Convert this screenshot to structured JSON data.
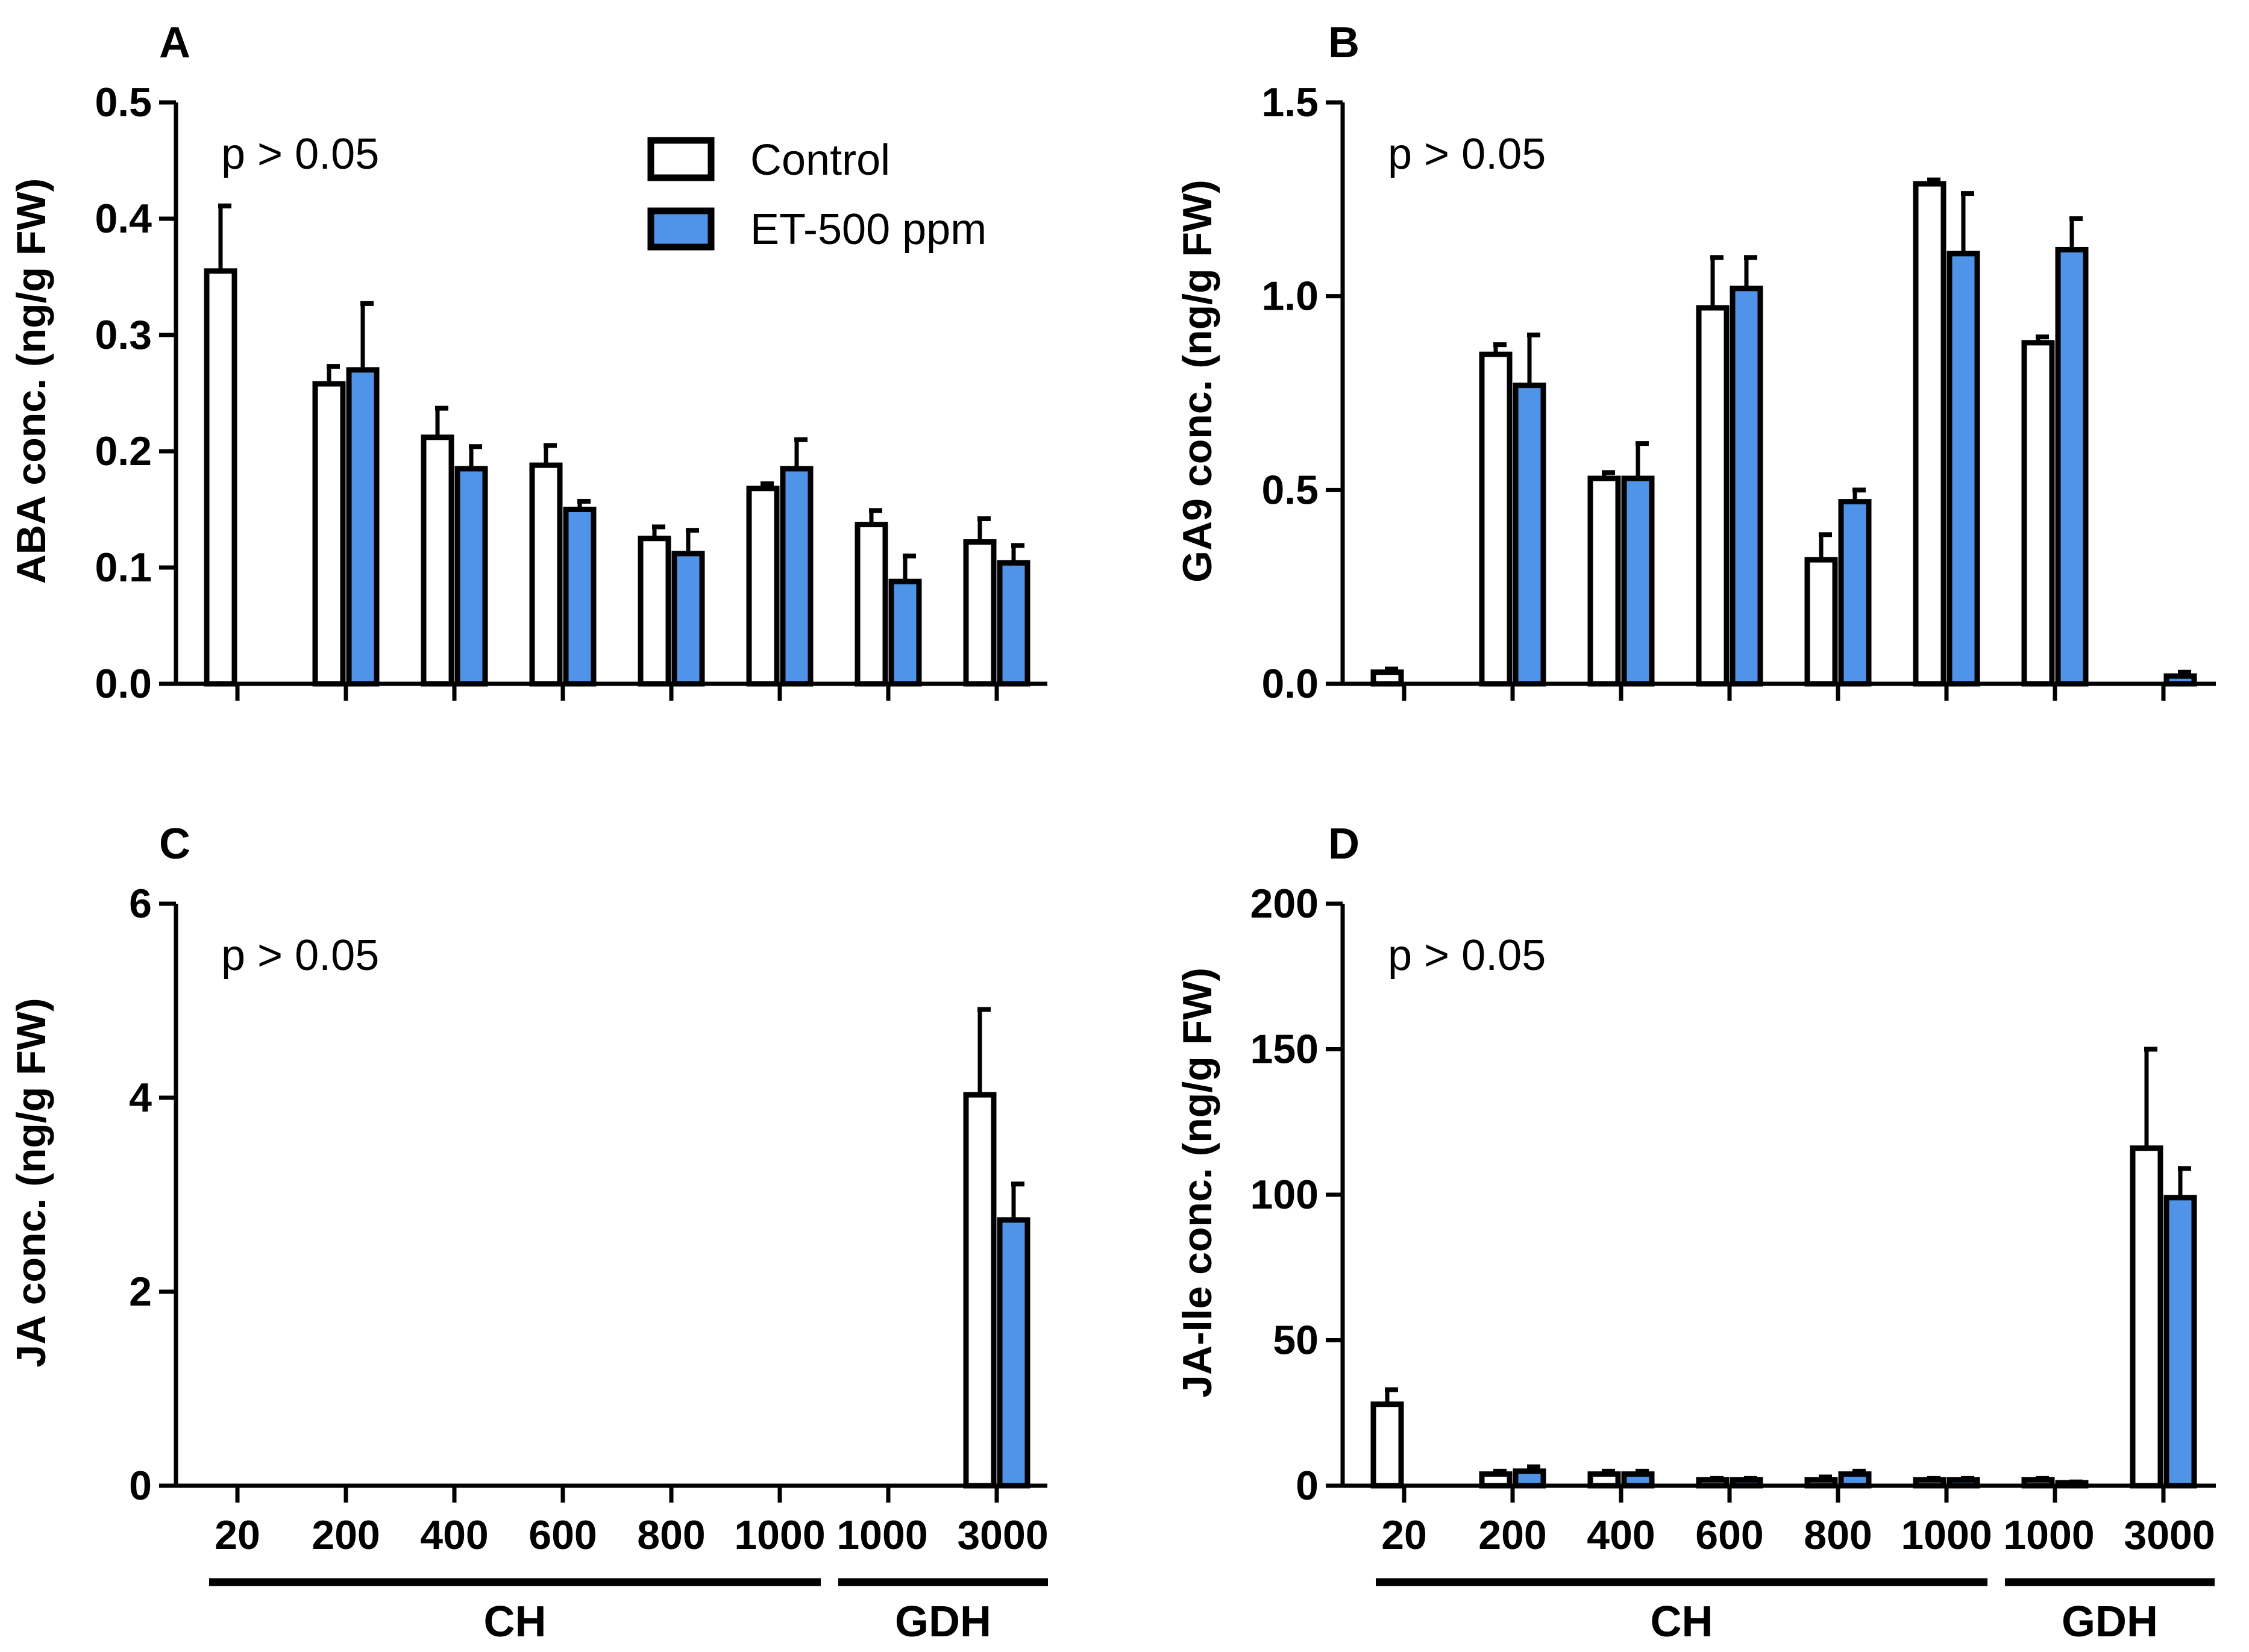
{
  "colors": {
    "control": "#ffffff",
    "treatment": "#4f94e8",
    "stroke": "#000000"
  },
  "legend": {
    "control_label": "Control",
    "treatment_label": "ET-500 ppm",
    "placement": "top-center"
  },
  "chart_data": [
    {
      "type": "bar",
      "panel": "A",
      "title": "",
      "ylabel": "ABA conc. (ng/g FW)",
      "xlabel": "",
      "annotation": "p > 0.05",
      "ylim": [
        0,
        0.5
      ],
      "yticks": [
        "0.0",
        "0.1",
        "0.2",
        "0.3",
        "0.4",
        "0.5"
      ],
      "categories": [
        "20",
        "200",
        "400",
        "600",
        "800",
        "1000",
        "1000",
        "3000"
      ],
      "series": [
        {
          "name": "Control",
          "values": [
            0.355,
            0.258,
            0.212,
            0.188,
            0.125,
            0.168,
            0.137,
            0.122
          ],
          "errors": [
            0.056,
            0.015,
            0.025,
            0.017,
            0.01,
            0.004,
            0.012,
            0.02
          ]
        },
        {
          "name": "ET-500 ppm",
          "values": [
            null,
            0.27,
            0.185,
            0.15,
            0.112,
            0.185,
            0.088,
            0.104
          ],
          "errors": [
            null,
            0.057,
            0.019,
            0.007,
            0.02,
            0.025,
            0.022,
            0.015
          ]
        }
      ]
    },
    {
      "type": "bar",
      "panel": "B",
      "title": "",
      "ylabel": "GA9 conc. (ng/g FW)",
      "xlabel": "",
      "annotation": "p > 0.05",
      "ylim": [
        0,
        1.5
      ],
      "yticks": [
        "0.0",
        "0.5",
        "1.0",
        "1.5"
      ],
      "categories": [
        "20",
        "200",
        "400",
        "600",
        "800",
        "1000",
        "1000",
        "3000"
      ],
      "series": [
        {
          "name": "Control",
          "values": [
            0.03,
            0.85,
            0.53,
            0.97,
            0.32,
            1.29,
            0.88,
            null
          ],
          "errors": [
            0.008,
            0.025,
            0.015,
            0.13,
            0.065,
            0.01,
            0.015,
            null
          ]
        },
        {
          "name": "ET-500 ppm",
          "values": [
            null,
            0.77,
            0.53,
            1.02,
            0.47,
            1.11,
            1.12,
            0.02
          ],
          "errors": [
            null,
            0.13,
            0.09,
            0.08,
            0.03,
            0.155,
            0.08,
            0.01
          ]
        }
      ]
    },
    {
      "type": "bar",
      "panel": "C",
      "title": "",
      "ylabel": "JA conc. (ng/g FW)",
      "xlabel": "",
      "annotation": "p > 0.05",
      "ylim": [
        0,
        6
      ],
      "yticks": [
        "0",
        "2",
        "4",
        "6"
      ],
      "categories": [
        "20",
        "200",
        "400",
        "600",
        "800",
        "1000",
        "1000",
        "3000"
      ],
      "series": [
        {
          "name": "Control",
          "values": [
            null,
            null,
            null,
            null,
            null,
            null,
            null,
            4.03
          ],
          "errors": [
            null,
            null,
            null,
            null,
            null,
            null,
            null,
            0.88
          ]
        },
        {
          "name": "ET-500 ppm",
          "values": [
            null,
            null,
            null,
            null,
            null,
            null,
            null,
            2.74
          ],
          "errors": [
            null,
            null,
            null,
            null,
            null,
            null,
            null,
            0.37
          ]
        }
      ]
    },
    {
      "type": "bar",
      "panel": "D",
      "title": "",
      "ylabel": "JA-Ile conc. (ng/g FW)",
      "xlabel": "",
      "annotation": "p > 0.05",
      "ylim": [
        0,
        200
      ],
      "yticks": [
        "0",
        "50",
        "100",
        "150",
        "200"
      ],
      "categories": [
        "20",
        "200",
        "400",
        "600",
        "800",
        "1000",
        "1000",
        "3000"
      ],
      "series": [
        {
          "name": "Control",
          "values": [
            28,
            4,
            4,
            2,
            2,
            2,
            2,
            116
          ],
          "errors": [
            5,
            1,
            1,
            0.5,
            1,
            0.5,
            0.5,
            34
          ]
        },
        {
          "name": "ET-500 ppm",
          "values": [
            null,
            5,
            4,
            2,
            4,
            2,
            1,
            99
          ],
          "errors": [
            null,
            1.5,
            1,
            0.5,
            1,
            0.5,
            0.3,
            10
          ]
        }
      ]
    }
  ],
  "x_groups": [
    {
      "label": "CH",
      "from": 0,
      "to": 5
    },
    {
      "label": "GDH",
      "from": 6,
      "to": 7
    }
  ]
}
